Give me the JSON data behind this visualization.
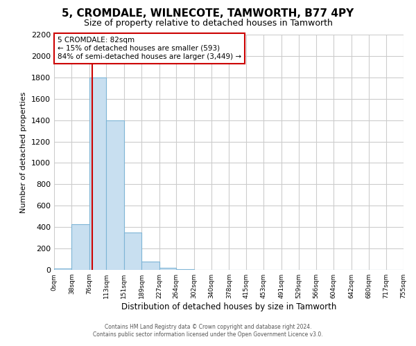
{
  "title": "5, CROMDALE, WILNECOTE, TAMWORTH, B77 4PY",
  "subtitle": "Size of property relative to detached houses in Tamworth",
  "xlabel": "Distribution of detached houses by size in Tamworth",
  "ylabel": "Number of detached properties",
  "bin_edges": [
    0,
    38,
    76,
    113,
    151,
    189,
    227,
    264,
    302,
    340,
    378,
    415,
    453,
    491,
    529,
    566,
    604,
    642,
    680,
    717,
    755
  ],
  "bin_labels": [
    "0sqm",
    "38sqm",
    "76sqm",
    "113sqm",
    "151sqm",
    "189sqm",
    "227sqm",
    "264sqm",
    "302sqm",
    "340sqm",
    "378sqm",
    "415sqm",
    "453sqm",
    "491sqm",
    "529sqm",
    "566sqm",
    "604sqm",
    "642sqm",
    "680sqm",
    "717sqm",
    "755sqm"
  ],
  "bar_heights": [
    15,
    430,
    1800,
    1400,
    350,
    75,
    20,
    5,
    0,
    0,
    0,
    0,
    0,
    0,
    0,
    0,
    0,
    0,
    0,
    0
  ],
  "bar_color": "#c8dff0",
  "bar_edgecolor": "#7eb5d6",
  "property_line_x": 82,
  "property_line_color": "#cc0000",
  "annotation_title": "5 CROMDALE: 82sqm",
  "annotation_line1": "← 15% of detached houses are smaller (593)",
  "annotation_line2": "84% of semi-detached houses are larger (3,449) →",
  "annotation_box_color": "#ffffff",
  "annotation_box_edgecolor": "#cc0000",
  "ylim": [
    0,
    2200
  ],
  "yticks": [
    0,
    200,
    400,
    600,
    800,
    1000,
    1200,
    1400,
    1600,
    1800,
    2000,
    2200
  ],
  "grid_color": "#cccccc",
  "background_color": "#ffffff",
  "footer_line1": "Contains HM Land Registry data © Crown copyright and database right 2024.",
  "footer_line2": "Contains public sector information licensed under the Open Government Licence v3.0."
}
